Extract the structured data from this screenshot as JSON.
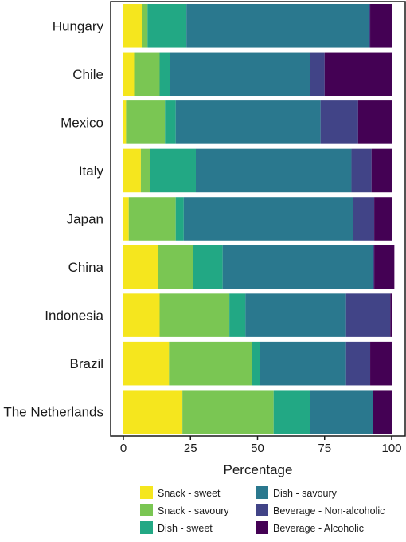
{
  "chart_data": {
    "type": "bar",
    "orientation": "horizontal",
    "stacked": true,
    "categories": [
      "Hungary",
      "Chile",
      "Mexico",
      "Italy",
      "Japan",
      "China",
      "Indonesia",
      "Brazil",
      "The Netherlands"
    ],
    "series": [
      {
        "name": "Snack - sweet",
        "color": "#f5e61e",
        "values": [
          7,
          4,
          1,
          6.5,
          2,
          13,
          13.5,
          17,
          22
        ]
      },
      {
        "name": "Snack - savoury",
        "color": "#7ac653",
        "values": [
          2,
          9.5,
          14.5,
          3.5,
          17.5,
          13,
          26,
          31,
          34
        ]
      },
      {
        "name": "Dish - sweet",
        "color": "#22a884",
        "values": [
          14.5,
          4,
          4,
          17,
          3,
          11,
          6,
          3,
          13.5
        ]
      },
      {
        "name": "Dish - savoury",
        "color": "#2a788e",
        "values": [
          68,
          52,
          54,
          58,
          63,
          56,
          37.5,
          32,
          23.5
        ]
      },
      {
        "name": "Beverage - Non-alcoholic",
        "color": "#414487",
        "values": [
          0.5,
          5.5,
          14,
          7.5,
          8,
          0.5,
          16.5,
          9,
          0
        ]
      },
      {
        "name": "Beverage - Alcoholic",
        "color": "#440154",
        "values": [
          8,
          25,
          12.5,
          7.5,
          6.5,
          7.5,
          0.5,
          8,
          7
        ]
      }
    ],
    "x_ticks": [
      0,
      25,
      50,
      75,
      100
    ],
    "xlim": [
      0,
      100
    ],
    "xlabel": "Percentage",
    "ylabel": "",
    "title": "",
    "grid": false,
    "legend_position": "bottom"
  }
}
